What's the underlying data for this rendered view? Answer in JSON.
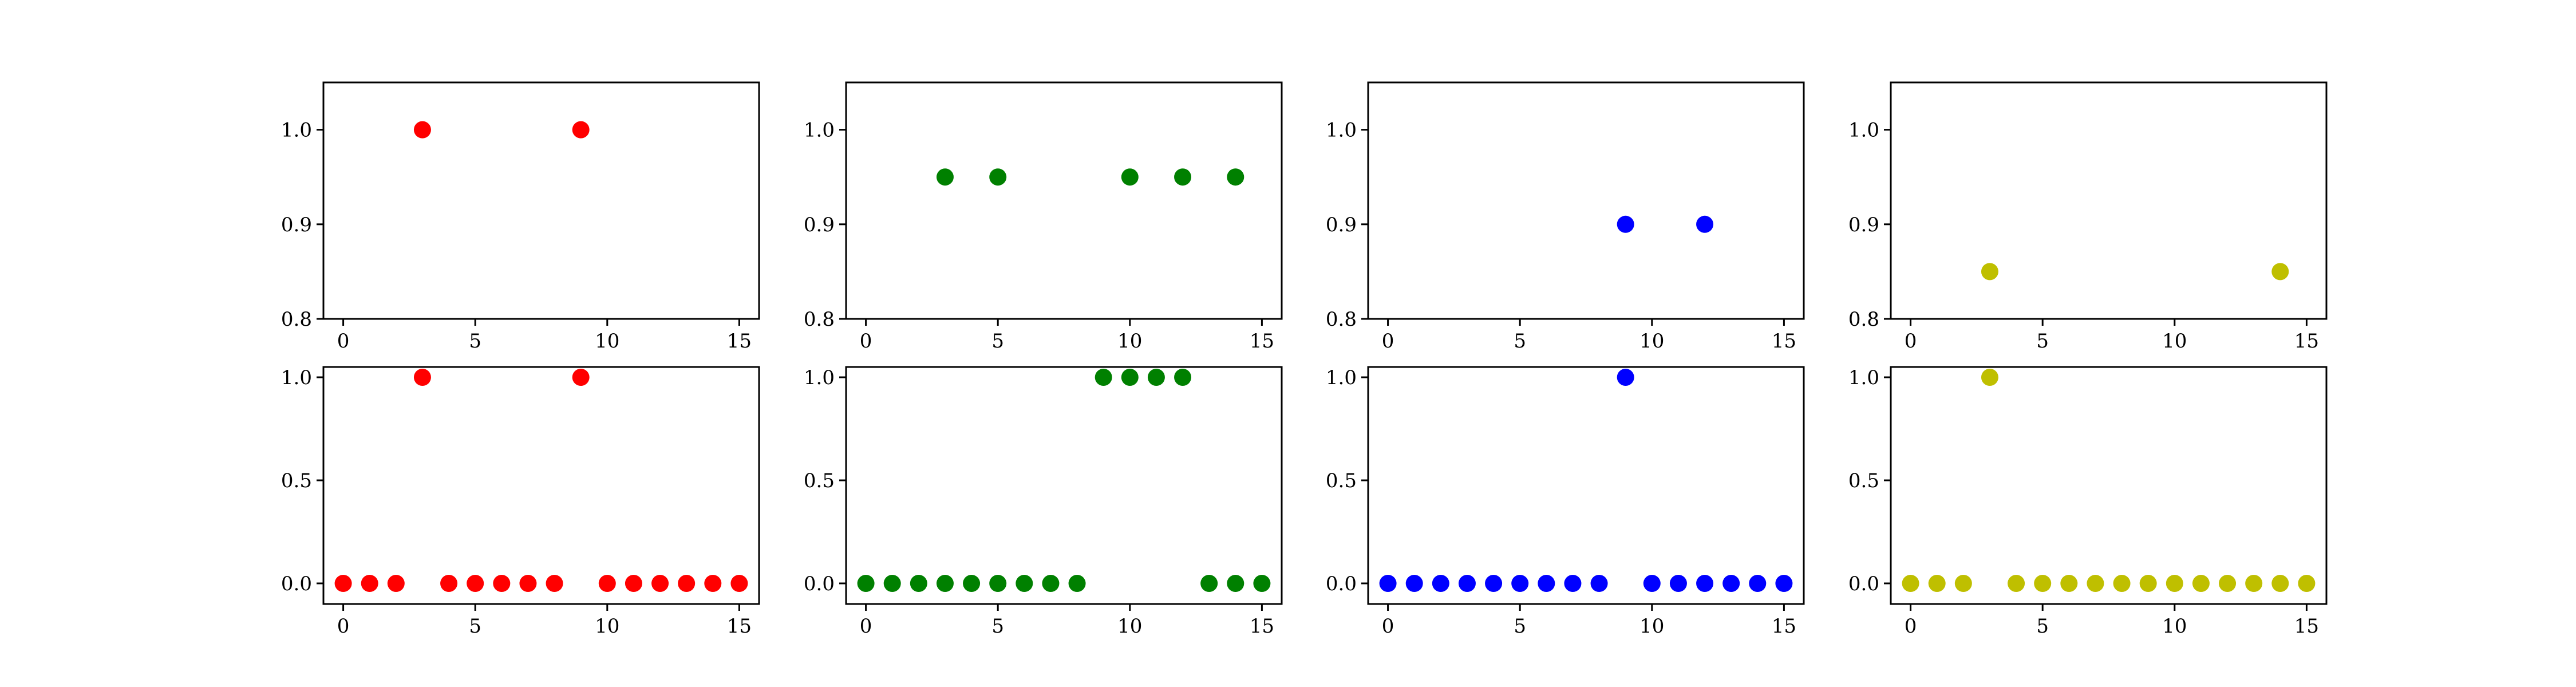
{
  "chart_data": [
    {
      "type": "scatter",
      "color": "#ff0000",
      "ylim": [
        0.8,
        1.05
      ],
      "xlim": [
        -0.75,
        15.75
      ],
      "xticks": [
        "0",
        "5",
        "10",
        "15"
      ],
      "yticks": [
        "0.8",
        "0.9",
        "1.0"
      ],
      "points": [
        {
          "x": 3,
          "y": 1.0
        },
        {
          "x": 9,
          "y": 1.0
        }
      ]
    },
    {
      "type": "scatter",
      "color": "#008000",
      "ylim": [
        0.8,
        1.05
      ],
      "xlim": [
        -0.75,
        15.75
      ],
      "xticks": [
        "0",
        "5",
        "10",
        "15"
      ],
      "yticks": [
        "0.8",
        "0.9",
        "1.0"
      ],
      "points": [
        {
          "x": 3,
          "y": 0.95
        },
        {
          "x": 5,
          "y": 0.95
        },
        {
          "x": 10,
          "y": 0.95
        },
        {
          "x": 12,
          "y": 0.95
        },
        {
          "x": 14,
          "y": 0.95
        }
      ]
    },
    {
      "type": "scatter",
      "color": "#0000ff",
      "ylim": [
        0.8,
        1.05
      ],
      "xlim": [
        -0.75,
        15.75
      ],
      "xticks": [
        "0",
        "5",
        "10",
        "15"
      ],
      "yticks": [
        "0.8",
        "0.9",
        "1.0"
      ],
      "points": [
        {
          "x": 9,
          "y": 0.9
        },
        {
          "x": 12,
          "y": 0.9
        }
      ]
    },
    {
      "type": "scatter",
      "color": "#bfbf00",
      "ylim": [
        0.8,
        1.05
      ],
      "xlim": [
        -0.75,
        15.75
      ],
      "xticks": [
        "0",
        "5",
        "10",
        "15"
      ],
      "yticks": [
        "0.8",
        "0.9",
        "1.0"
      ],
      "points": [
        {
          "x": 3,
          "y": 0.85
        },
        {
          "x": 14,
          "y": 0.85
        }
      ]
    },
    {
      "type": "scatter",
      "color": "#ff0000",
      "ylim": [
        -0.1,
        1.05
      ],
      "xlim": [
        -0.75,
        15.75
      ],
      "xticks": [
        "0",
        "5",
        "10",
        "15"
      ],
      "yticks": [
        "0.0",
        "0.5",
        "1.0"
      ],
      "x": [
        0,
        1,
        2,
        3,
        4,
        5,
        6,
        7,
        8,
        9,
        10,
        11,
        12,
        13,
        14,
        15
      ],
      "y": [
        0,
        0,
        0,
        1,
        0,
        0,
        0,
        0,
        0,
        1,
        0,
        0,
        0,
        0,
        0,
        0
      ]
    },
    {
      "type": "scatter",
      "color": "#008000",
      "ylim": [
        -0.1,
        1.05
      ],
      "xlim": [
        -0.75,
        15.75
      ],
      "xticks": [
        "0",
        "5",
        "10",
        "15"
      ],
      "yticks": [
        "0.0",
        "0.5",
        "1.0"
      ],
      "x": [
        0,
        1,
        2,
        3,
        4,
        5,
        6,
        7,
        8,
        9,
        10,
        11,
        12,
        13,
        14,
        15
      ],
      "y": [
        0,
        0,
        0,
        0,
        0,
        0,
        0,
        0,
        0,
        1,
        1,
        1,
        1,
        0,
        0,
        0
      ]
    },
    {
      "type": "scatter",
      "color": "#0000ff",
      "ylim": [
        -0.1,
        1.05
      ],
      "xlim": [
        -0.75,
        15.75
      ],
      "xticks": [
        "0",
        "5",
        "10",
        "15"
      ],
      "yticks": [
        "0.0",
        "0.5",
        "1.0"
      ],
      "x": [
        0,
        1,
        2,
        3,
        4,
        5,
        6,
        7,
        8,
        9,
        10,
        11,
        12,
        13,
        14,
        15
      ],
      "y": [
        0,
        0,
        0,
        0,
        0,
        0,
        0,
        0,
        0,
        1,
        0,
        0,
        0,
        0,
        0,
        0
      ]
    },
    {
      "type": "scatter",
      "color": "#bfbf00",
      "ylim": [
        -0.1,
        1.05
      ],
      "xlim": [
        -0.75,
        15.75
      ],
      "xticks": [
        "0",
        "5",
        "10",
        "15"
      ],
      "yticks": [
        "0.0",
        "0.5",
        "1.0"
      ],
      "x": [
        0,
        1,
        2,
        3,
        4,
        5,
        6,
        7,
        8,
        9,
        10,
        11,
        12,
        13,
        14,
        15
      ],
      "y": [
        0,
        0,
        0,
        1,
        0,
        0,
        0,
        0,
        0,
        0,
        0,
        0,
        0,
        0,
        0,
        0
      ]
    }
  ]
}
